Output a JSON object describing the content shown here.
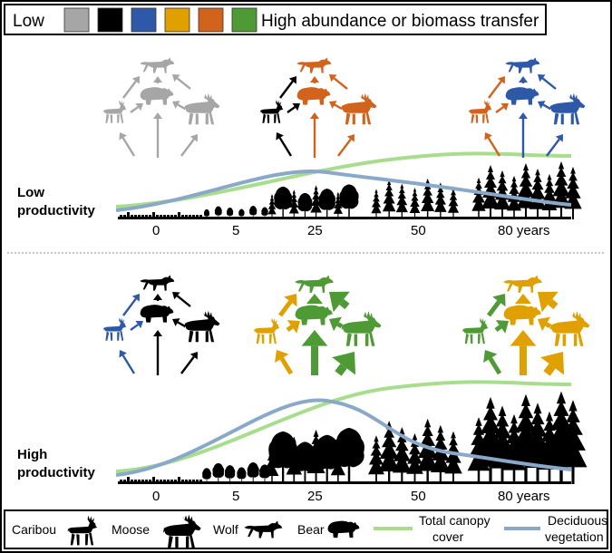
{
  "legend": {
    "low_label": "Low",
    "high_label": "High abundance or biomass transfer",
    "swatches": [
      {
        "name": "grey",
        "color": "#a6a6a6"
      },
      {
        "name": "black",
        "color": "#000000"
      },
      {
        "name": "blue",
        "color": "#2e59a8"
      },
      {
        "name": "yellow",
        "color": "#e0a000"
      },
      {
        "name": "orange",
        "color": "#d1631c"
      },
      {
        "name": "green",
        "color": "#4e9a35"
      }
    ]
  },
  "panels": [
    {
      "name": "low",
      "title_line1": "Low",
      "title_line2": "productivity",
      "ticks": [
        "0",
        "5",
        "25",
        "50",
        "80 years"
      ],
      "webs": [
        {
          "stage": "0",
          "wolf": "#a6a6a6",
          "bear": "#a6a6a6",
          "caribou": "#a6a6a6",
          "moose": "#a6a6a6",
          "arrows": {
            "c_w": "#a6a6a6",
            "m_w": "#a6a6a6",
            "b_w": "#a6a6a6",
            "c_b": "#a6a6a6",
            "m_b": "#a6a6a6",
            "v_c": "#a6a6a6",
            "v_b": "#a6a6a6",
            "v_m": "#a6a6a6"
          }
        },
        {
          "stage": "25",
          "wolf": "#d1631c",
          "bear": "#d1631c",
          "caribou": "#000000",
          "moose": "#d1631c",
          "arrows": {
            "c_w": "#000000",
            "m_w": "#d1631c",
            "b_w": "#d1631c",
            "c_b": "#000000",
            "m_b": "#d1631c",
            "v_c": "#000000",
            "v_b": "#d1631c",
            "v_m": "#d1631c"
          }
        },
        {
          "stage": "80",
          "wolf": "#2e59a8",
          "bear": "#2e59a8",
          "caribou": "#d1631c",
          "moose": "#2e59a8",
          "arrows": {
            "c_w": "#d1631c",
            "m_w": "#2e59a8",
            "b_w": "#2e59a8",
            "c_b": "#d1631c",
            "m_b": "#2e59a8",
            "v_c": "#d1631c",
            "v_b": "#2e59a8",
            "v_m": "#2e59a8"
          }
        }
      ]
    },
    {
      "name": "high",
      "title_line1": "High",
      "title_line2": "productivity",
      "ticks": [
        "0",
        "5",
        "25",
        "50",
        "80 years"
      ],
      "webs": [
        {
          "stage": "0",
          "wolf": "#000000",
          "bear": "#000000",
          "caribou": "#2e59a8",
          "moose": "#000000",
          "arrows": {
            "c_w": "#2e59a8",
            "m_w": "#000000",
            "b_w": "#000000",
            "c_b": "#2e59a8",
            "m_b": "#000000",
            "v_c": "#2e59a8",
            "v_b": "#000000",
            "v_m": "#000000"
          }
        },
        {
          "stage": "25",
          "wolf": "#4e9a35",
          "bear": "#4e9a35",
          "caribou": "#e0a000",
          "moose": "#4e9a35",
          "arrows": {
            "c_w": "#e0a000",
            "m_w": "#4e9a35",
            "b_w": "#4e9a35",
            "c_b": "#e0a000",
            "m_b": "#4e9a35",
            "v_c": "#e0a000",
            "v_b": "#4e9a35",
            "v_m": "#4e9a35"
          }
        },
        {
          "stage": "80",
          "wolf": "#e0a000",
          "bear": "#e0a000",
          "caribou": "#4e9a35",
          "moose": "#e0a000",
          "arrows": {
            "c_w": "#4e9a35",
            "m_w": "#e0a000",
            "b_w": "#e0a000",
            "c_b": "#4e9a35",
            "m_b": "#e0a000",
            "v_c": "#4e9a35",
            "v_b": "#e0a000",
            "v_m": "#e0a000"
          }
        }
      ]
    }
  ],
  "key": {
    "caribou": "Caribou",
    "moose": "Moose",
    "wolf": "Wolf",
    "bear": "Bear",
    "canopy_line1": "Total canopy",
    "canopy_line2": "cover",
    "deciduous_line1": "Deciduous",
    "deciduous_line2": "vegetation"
  },
  "colors": {
    "canopy_line": "#a8dd8e",
    "deciduous_line": "#8aa9c9"
  }
}
